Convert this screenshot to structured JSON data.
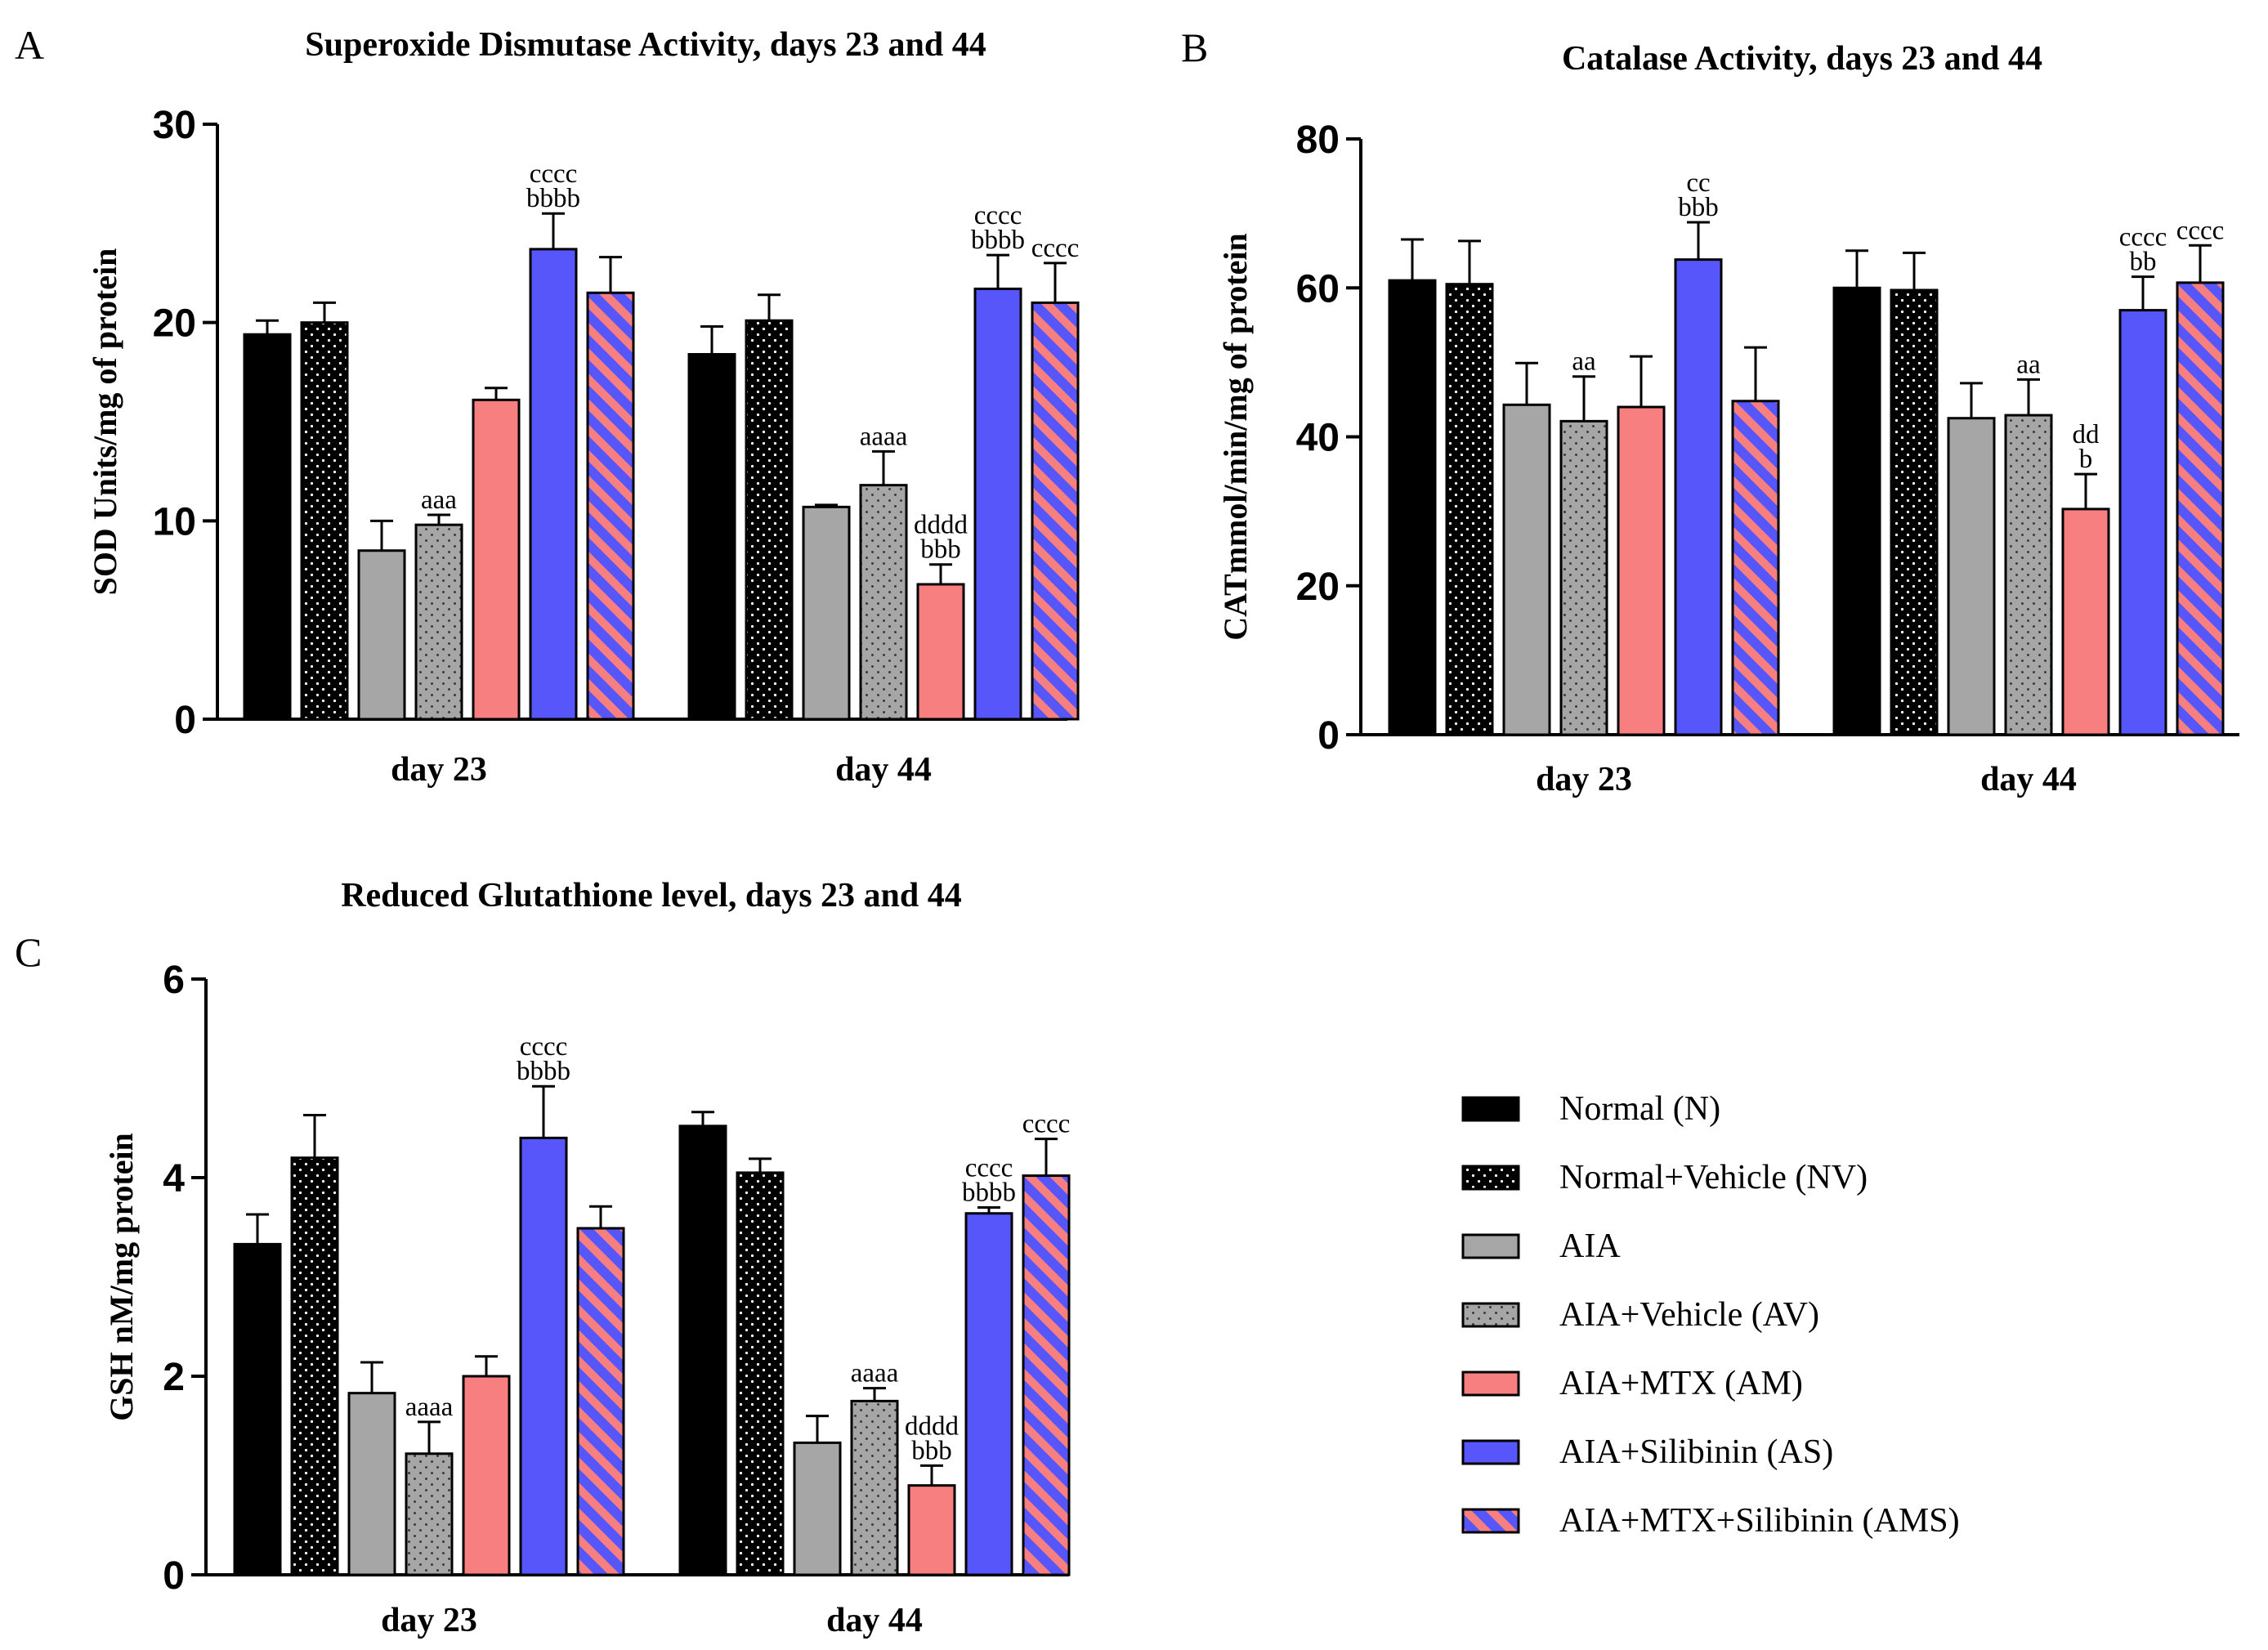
{
  "figure": {
    "legend": [
      {
        "label": "Normal (N)",
        "style": "solid",
        "color": "#000000"
      },
      {
        "label": "Normal+Vehicle (NV)",
        "style": "dots",
        "color": "#000000"
      },
      {
        "label": "AIA",
        "style": "solid",
        "color": "#a6a6a6"
      },
      {
        "label": "AIA+Vehicle (AV)",
        "style": "dots",
        "color": "#a6a6a6"
      },
      {
        "label": "AIA+MTX (AM)",
        "style": "solid",
        "color": "#f87f7f"
      },
      {
        "label": "AIA+Silibinin (AS)",
        "style": "solid",
        "color": "#5656fb"
      },
      {
        "label": "AIA+MTX+Silibinin (AMS)",
        "style": "stripes",
        "color": "#5656fb"
      }
    ]
  },
  "chart_data": [
    {
      "panel": "A",
      "type": "bar",
      "title": "Superoxide Dismutase Activity, days 23 and 44",
      "ylabel": "SOD Units/mg of protein",
      "xlabel": "",
      "ylim": [
        0,
        30
      ],
      "yticks": [
        0,
        10,
        20,
        30
      ],
      "categories": [
        "day 23",
        "day 44"
      ],
      "series": [
        {
          "name": "Normal (N)",
          "values": [
            19.4,
            18.4
          ],
          "errors": [
            0.7,
            1.4
          ],
          "labels": [
            "",
            ""
          ]
        },
        {
          "name": "Normal+Vehicle (NV)",
          "values": [
            20.0,
            20.1
          ],
          "errors": [
            1.0,
            1.3
          ],
          "labels": [
            "",
            ""
          ]
        },
        {
          "name": "AIA",
          "values": [
            8.5,
            10.7
          ],
          "errors": [
            1.5,
            0.1
          ],
          "labels": [
            "",
            ""
          ]
        },
        {
          "name": "AIA+Vehicle (AV)",
          "values": [
            9.8,
            11.8
          ],
          "errors": [
            0.5,
            1.7
          ],
          "labels": [
            "aaa",
            "aaaa"
          ]
        },
        {
          "name": "AIA+MTX (AM)",
          "values": [
            16.1,
            6.8
          ],
          "errors": [
            0.6,
            1.0
          ],
          "labels": [
            "",
            "dddd\nbbb"
          ]
        },
        {
          "name": "AIA+Silibinin (AS)",
          "values": [
            23.7,
            21.7
          ],
          "errors": [
            1.8,
            1.7
          ],
          "labels": [
            "cccc\nbbbb",
            "cccc\nbbbb"
          ]
        },
        {
          "name": "AIA+MTX+Silibinin (AMS)",
          "values": [
            21.5,
            21.0
          ],
          "errors": [
            1.8,
            2.0
          ],
          "labels": [
            "",
            "cccc"
          ]
        }
      ]
    },
    {
      "panel": "B",
      "type": "bar",
      "title": "Catalase Activity, days 23 and 44",
      "ylabel": "CATmmol/min/mg of protein",
      "xlabel": "",
      "ylim": [
        0,
        80
      ],
      "yticks": [
        0,
        20,
        40,
        60,
        80
      ],
      "categories": [
        "day 23",
        "day 44"
      ],
      "series": [
        {
          "name": "Normal (N)",
          "values": [
            61.0,
            60.0
          ],
          "errors": [
            5.5,
            5.0
          ],
          "labels": [
            "",
            ""
          ]
        },
        {
          "name": "Normal+Vehicle (NV)",
          "values": [
            60.5,
            59.7
          ],
          "errors": [
            5.8,
            5.0
          ],
          "labels": [
            "",
            ""
          ]
        },
        {
          "name": "AIA",
          "values": [
            44.3,
            42.5
          ],
          "errors": [
            5.6,
            4.7
          ],
          "labels": [
            "",
            ""
          ]
        },
        {
          "name": "AIA+Vehicle (AV)",
          "values": [
            42.1,
            42.9
          ],
          "errors": [
            6.0,
            4.8
          ],
          "labels": [
            "aa",
            "aa"
          ]
        },
        {
          "name": "AIA+MTX (AM)",
          "values": [
            44.0,
            30.3
          ],
          "errors": [
            6.8,
            4.7
          ],
          "labels": [
            "",
            "dd\nb"
          ]
        },
        {
          "name": "AIA+Silibinin (AS)",
          "values": [
            63.8,
            57.0
          ],
          "errors": [
            5.0,
            4.5
          ],
          "labels": [
            "cc\nbbb",
            "cccc\nbb"
          ]
        },
        {
          "name": "AIA+MTX+Silibinin (AMS)",
          "values": [
            44.8,
            60.7
          ],
          "errors": [
            7.2,
            5.0
          ],
          "labels": [
            "",
            "cccc"
          ]
        }
      ]
    },
    {
      "panel": "C",
      "type": "bar",
      "title": "Reduced Glutathione level, days 23 and 44",
      "ylabel": "GSH nM/mg protein",
      "xlabel": "",
      "ylim": [
        0,
        6
      ],
      "yticks": [
        0,
        2,
        4,
        6
      ],
      "categories": [
        "day 23",
        "day 44"
      ],
      "series": [
        {
          "name": "Normal (N)",
          "values": [
            3.33,
            4.52
          ],
          "errors": [
            0.3,
            0.14
          ],
          "labels": [
            "",
            ""
          ]
        },
        {
          "name": "Normal+Vehicle (NV)",
          "values": [
            4.2,
            4.05
          ],
          "errors": [
            0.43,
            0.14
          ],
          "labels": [
            "",
            ""
          ]
        },
        {
          "name": "AIA",
          "values": [
            1.83,
            1.33
          ],
          "errors": [
            0.31,
            0.27
          ],
          "labels": [
            "",
            ""
          ]
        },
        {
          "name": "AIA+Vehicle (AV)",
          "values": [
            1.22,
            1.75
          ],
          "errors": [
            0.32,
            0.13
          ],
          "labels": [
            "aaaa",
            "aaaa"
          ]
        },
        {
          "name": "AIA+MTX (AM)",
          "values": [
            2.0,
            0.9
          ],
          "errors": [
            0.2,
            0.2
          ],
          "labels": [
            "",
            "dddd\nbbb"
          ]
        },
        {
          "name": "AIA+Silibinin (AS)",
          "values": [
            4.4,
            3.64
          ],
          "errors": [
            0.52,
            0.06
          ],
          "labels": [
            "cccc\nbbbb",
            "cccc\nbbbb"
          ]
        },
        {
          "name": "AIA+MTX+Silibinin (AMS)",
          "values": [
            3.49,
            4.02
          ],
          "errors": [
            0.22,
            0.37
          ],
          "labels": [
            "",
            "cccc"
          ]
        }
      ]
    }
  ]
}
